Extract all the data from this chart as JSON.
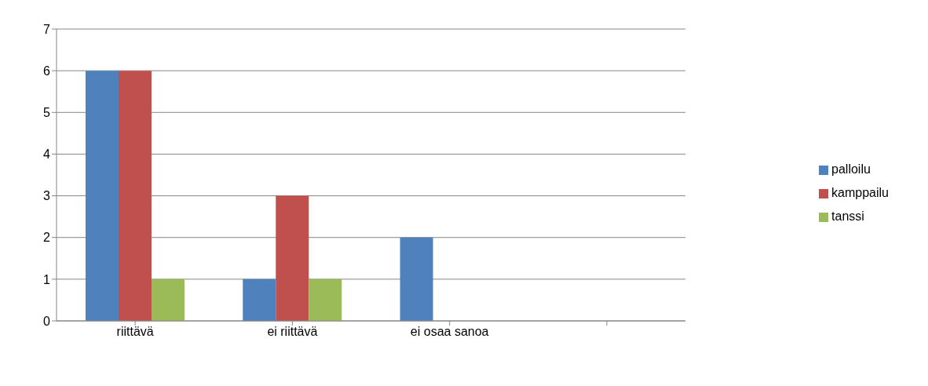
{
  "chart_data": {
    "type": "bar",
    "categories": [
      "riittävä",
      "ei riittävä",
      "ei osaa sanoa",
      null
    ],
    "series": [
      {
        "name": "palloilu",
        "color": "#4f81bd",
        "values": [
          6,
          1,
          2,
          null
        ]
      },
      {
        "name": "kamppailu",
        "color": "#c0504d",
        "values": [
          6,
          3,
          0,
          null
        ]
      },
      {
        "name": "tanssi",
        "color": "#9bbb59",
        "values": [
          1,
          1,
          0,
          null
        ]
      }
    ],
    "ylim": [
      0,
      7
    ],
    "yticks": [
      0,
      1,
      2,
      3,
      4,
      5,
      6,
      7
    ],
    "grid": "y",
    "legend": "right"
  }
}
